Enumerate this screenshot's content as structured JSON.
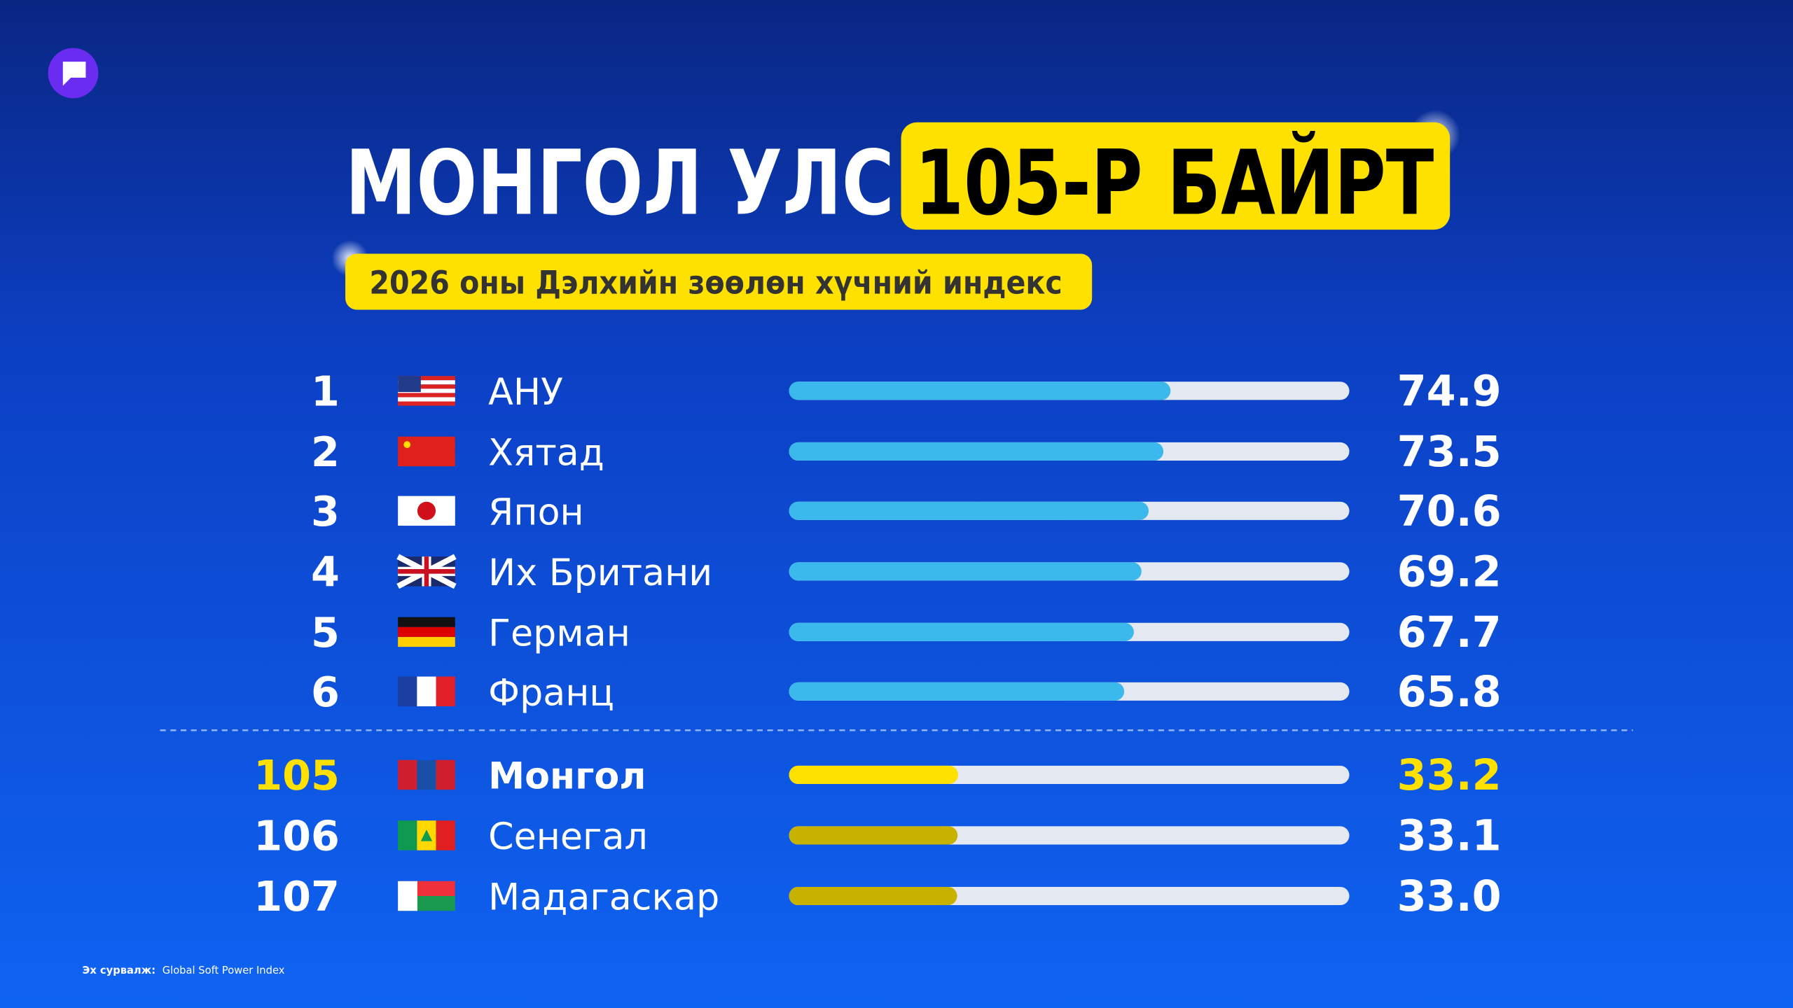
{
  "chart_data": {
    "type": "bar",
    "title": "МОНГОЛ УЛС",
    "title_highlight": "105-Р БАЙРТ",
    "subtitle": "2026 оны Дэлхийн зөөлөн хүчний индекс",
    "ranks": [
      1,
      2,
      3,
      4,
      5,
      6,
      105,
      106,
      107
    ],
    "categories": [
      "АНУ",
      "Хятад",
      "Япон",
      "Их Британи",
      "Герман",
      "Франц",
      "Монгол",
      "Сенегал",
      "Мадагаскар"
    ],
    "values": [
      74.9,
      73.5,
      70.6,
      69.2,
      67.7,
      65.8,
      33.2,
      33.1,
      33.0
    ],
    "value_labels": [
      "74.9",
      "73.5",
      "70.6",
      "69.2",
      "67.7",
      "65.8",
      "33.2",
      "33.1",
      "33.0"
    ],
    "colors": [
      "#3bb8ec",
      "#3bb8ec",
      "#3bb8ec",
      "#3bb8ec",
      "#3bb8ec",
      "#3bb8ec",
      "#ffe100",
      "#c8b200",
      "#c8b200"
    ],
    "highlight_color": "#ffe100",
    "highlight": 6,
    "xlim": [
      0,
      110
    ],
    "source_label": "Эх сурвалж:",
    "source": "Global Soft Power Index"
  }
}
